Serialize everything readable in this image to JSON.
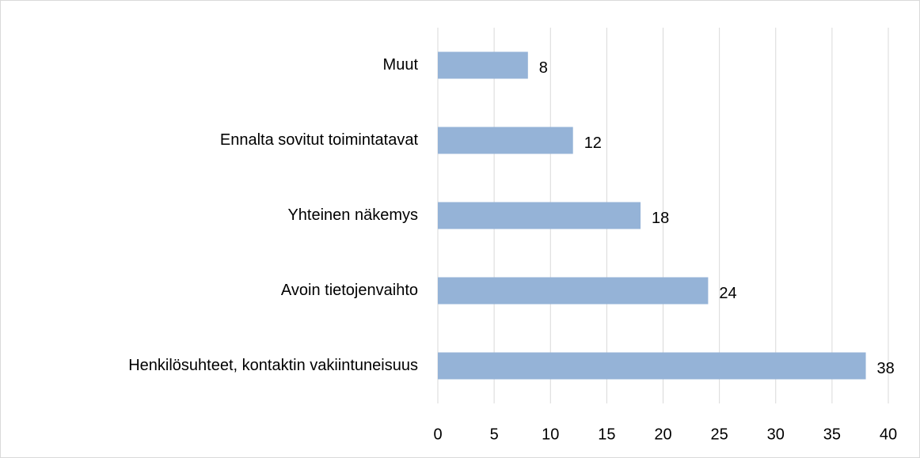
{
  "chart_data": {
    "type": "bar",
    "orientation": "horizontal",
    "categories": [
      "Muut",
      "Ennalta sovitut toimintatavat",
      "Yhteinen näkemys",
      "Avoin tietojenvaihto",
      "Henkilösuhteet, kontaktin vakiintuneisuus"
    ],
    "values": [
      8,
      12,
      18,
      24,
      38
    ],
    "color": "#95b3d7",
    "xlim": [
      0,
      40
    ],
    "xticks": [
      0,
      5,
      10,
      15,
      20,
      25,
      30,
      35,
      40
    ],
    "grid": true
  }
}
